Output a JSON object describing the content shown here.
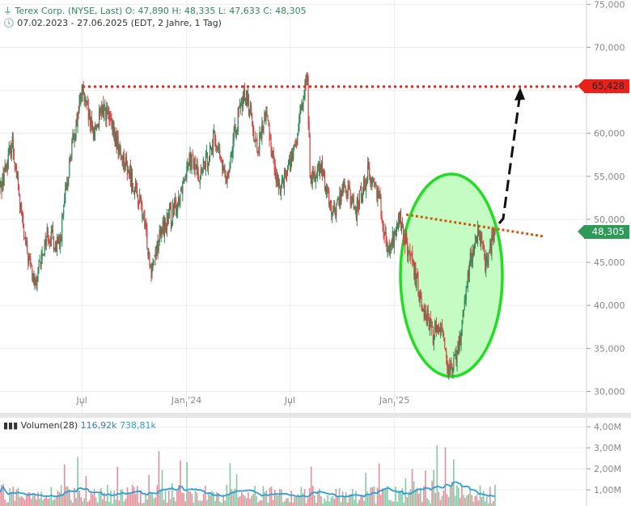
{
  "header": {
    "title": "Terex Corp. (NYSE, Last)",
    "open": "O: 47,890",
    "high": "H: 48,335",
    "low": "L: 47,633",
    "close": "C: 48,305",
    "range": "07.02.2023 - 27.06.2025",
    "meta": "(EDT, 2 Jahre, 1 Tag)"
  },
  "price_tags": {
    "resistance": "65,428",
    "last": "48,305"
  },
  "volume_legend": {
    "name": "Volumen(28)",
    "v1": "116,92k",
    "v2": "738,81k"
  },
  "chart_data": [
    {
      "type": "candlestick",
      "x_ticks": [
        "Jul",
        "Jan '24",
        "Jul",
        "Jan '25"
      ],
      "y_ticks": [
        "30,000",
        "35,000",
        "40,000",
        "45,000",
        "50,000",
        "55,000",
        "60,000",
        "65,000",
        "70,000",
        "75,000"
      ],
      "ylim": [
        27.5,
        75.5
      ],
      "x_range": [
        "2023-02-07",
        "2025-06-27"
      ],
      "last": 48.305,
      "resistance": 65.428,
      "anchors": [
        [
          "2023-02-07",
          53.5
        ],
        [
          "2023-03-01",
          59.0
        ],
        [
          "2023-03-22",
          47.5
        ],
        [
          "2023-04-10",
          42.0
        ],
        [
          "2023-05-01",
          48.5
        ],
        [
          "2023-05-22",
          46.5
        ],
        [
          "2023-06-10",
          57.0
        ],
        [
          "2023-07-01",
          65.0
        ],
        [
          "2023-07-20",
          60.0
        ],
        [
          "2023-08-10",
          63.0
        ],
        [
          "2023-09-05",
          58.0
        ],
        [
          "2023-09-25",
          55.0
        ],
        [
          "2023-10-15",
          51.0
        ],
        [
          "2023-10-31",
          44.5
        ],
        [
          "2023-11-20",
          49.0
        ],
        [
          "2023-12-15",
          51.5
        ],
        [
          "2024-01-05",
          57.5
        ],
        [
          "2024-01-25",
          55.0
        ],
        [
          "2024-02-20",
          59.5
        ],
        [
          "2024-03-10",
          54.5
        ],
        [
          "2024-04-01",
          62.0
        ],
        [
          "2024-04-15",
          65.0
        ],
        [
          "2024-05-05",
          58.0
        ],
        [
          "2024-05-20",
          62.5
        ],
        [
          "2024-06-10",
          53.5
        ],
        [
          "2024-07-10",
          58.0
        ],
        [
          "2024-07-31",
          67.0
        ],
        [
          "2024-08-06",
          54.5
        ],
        [
          "2024-08-25",
          56.0
        ],
        [
          "2024-09-15",
          50.5
        ],
        [
          "2024-10-05",
          54.0
        ],
        [
          "2024-10-25",
          51.0
        ],
        [
          "2024-11-15",
          55.5
        ],
        [
          "2024-12-05",
          53.0
        ],
        [
          "2024-12-20",
          46.0
        ],
        [
          "2025-01-10",
          50.0
        ],
        [
          "2025-02-01",
          44.5
        ],
        [
          "2025-02-20",
          40.0
        ],
        [
          "2025-03-10",
          36.5
        ],
        [
          "2025-03-25",
          38.0
        ],
        [
          "2025-04-08",
          31.5
        ],
        [
          "2025-04-25",
          35.5
        ],
        [
          "2025-05-12",
          44.5
        ],
        [
          "2025-05-28",
          48.5
        ],
        [
          "2025-06-10",
          45.0
        ],
        [
          "2025-06-27",
          48.3
        ]
      ]
    },
    {
      "type": "bar",
      "name": "Volumen(28)",
      "y_ticks": [
        "1,00M",
        "2,00M",
        "3,00M",
        "4,00M"
      ],
      "ylim": [
        0,
        4.2
      ]
    }
  ],
  "annotations": {
    "resistance_color": "#e8221b",
    "downtrend_color": "#e8221b",
    "ellipse_fill": "#c4fcc4",
    "ellipse_stroke": "#22dd22",
    "arrow_color": "#111111",
    "up_color": "#2e8b57",
    "down_color": "#d64545"
  }
}
